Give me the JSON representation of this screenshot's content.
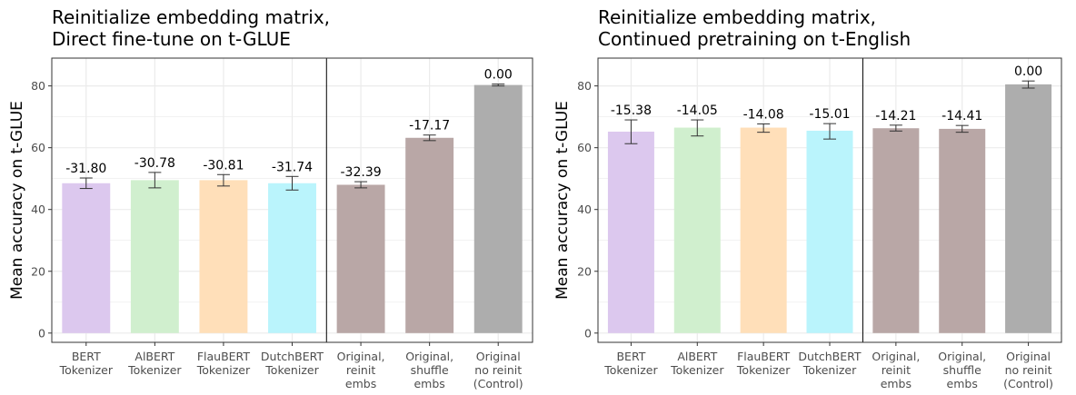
{
  "chart_data": [
    {
      "type": "bar",
      "title": [
        "Reinitialize embedding matrix,",
        "Direct fine-tune on t-GLUE"
      ],
      "ylabel": "Mean accuracy on t-GLUE",
      "xlabel": "",
      "ylim": [
        -3,
        89
      ],
      "yticks": [
        0,
        20,
        40,
        60,
        80
      ],
      "ytick_labels": [
        "0",
        "20",
        "40",
        "60",
        "80"
      ],
      "grid": true,
      "divider_after_index": 3,
      "categories": [
        [
          "BERT",
          "Tokenizer"
        ],
        [
          "AlBERT",
          "Tokenizer"
        ],
        [
          "FlauBERT",
          "Tokenizer"
        ],
        [
          "DutchBERT",
          "Tokenizer"
        ],
        [
          "Original,",
          "reinit",
          "embs"
        ],
        [
          "Original,",
          "shuffle",
          "embs"
        ],
        [
          "Original",
          "no reinit",
          "(Control)"
        ]
      ],
      "values": [
        48.5,
        49.5,
        49.5,
        48.5,
        48.0,
        63.2,
        80.3
      ],
      "error_low": [
        46.8,
        47.0,
        47.6,
        46.3,
        47.0,
        62.3,
        80.0
      ],
      "error_high": [
        50.2,
        52.0,
        51.3,
        50.7,
        49.0,
        64.1,
        80.6
      ],
      "data_labels": [
        "-31.80",
        "-30.78",
        "-30.81",
        "-31.74",
        "-32.39",
        "-17.17",
        "0.00"
      ],
      "colors": [
        "#dcc8ee",
        "#d0efce",
        "#ffdfb9",
        "#baf4fc",
        "#b9a7a6",
        "#b9a7a6",
        "#adadad"
      ]
    },
    {
      "type": "bar",
      "title": [
        "Reinitialize embedding matrix,",
        "Continued pretraining on t-English"
      ],
      "ylabel": "Mean accuracy on t-GLUE",
      "xlabel": "",
      "ylim": [
        -3,
        89
      ],
      "yticks": [
        0,
        20,
        40,
        60,
        80
      ],
      "ytick_labels": [
        "0",
        "20",
        "40",
        "60",
        "80"
      ],
      "grid": true,
      "divider_after_index": 3,
      "categories": [
        [
          "BERT",
          "Tokenizer"
        ],
        [
          "AlBERT",
          "Tokenizer"
        ],
        [
          "FlauBERT",
          "Tokenizer"
        ],
        [
          "DutchBERT",
          "Tokenizer"
        ],
        [
          "Original,",
          "reinit",
          "embs"
        ],
        [
          "Original,",
          "shuffle",
          "embs"
        ],
        [
          "Original",
          "no reinit",
          "(Control)"
        ]
      ],
      "values": [
        65.2,
        66.5,
        66.5,
        65.5,
        66.3,
        66.1,
        80.5
      ],
      "error_low": [
        61.3,
        63.8,
        65.0,
        62.8,
        65.4,
        65.0,
        79.3
      ],
      "error_high": [
        69.0,
        69.0,
        67.7,
        67.8,
        67.3,
        67.2,
        81.6
      ],
      "data_labels": [
        "-15.38",
        "-14.05",
        "-14.08",
        "-15.01",
        "-14.21",
        "-14.41",
        "0.00"
      ],
      "colors": [
        "#dcc8ee",
        "#d0efce",
        "#ffdfb9",
        "#baf4fc",
        "#b9a7a6",
        "#b9a7a6",
        "#adadad"
      ]
    }
  ]
}
